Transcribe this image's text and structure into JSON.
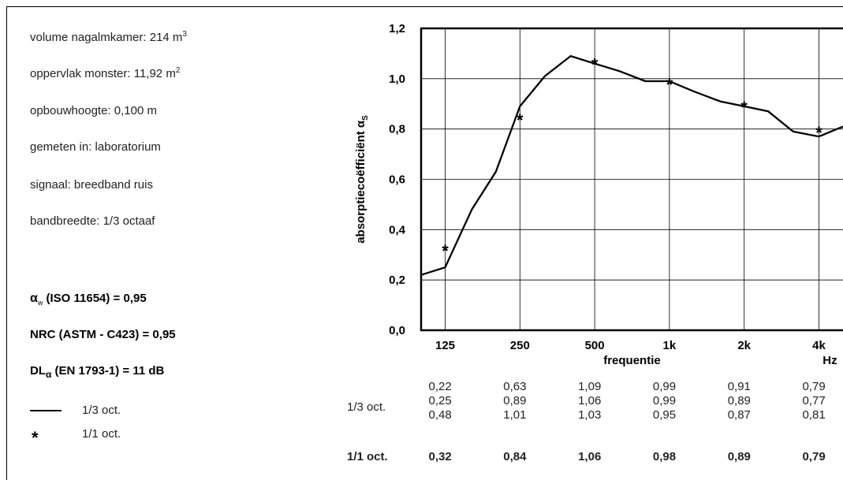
{
  "info": {
    "volume_label": "volume nagalmkamer: 214 m",
    "volume_sup": "3",
    "area_label": "oppervlak monster: 11,92 m",
    "area_sup": "2",
    "height": "opbouwhoogte: 0,100 m",
    "measured": "gemeten in: laboratorium",
    "signal": "signaal: breedband ruis",
    "bandwidth": "bandbreedte: 1/3 octaaf"
  },
  "stats": {
    "alpha_w_symbol": "α",
    "alpha_w_sub": "w",
    "alpha_w_rest": " (ISO 11654) = 0,95",
    "nrc": "NRC (ASTM - C423) = 0,95",
    "dl_prefix": "DL",
    "dl_sub": "α",
    "dl_rest": " (EN 1793-1) =  11 dB"
  },
  "legend": {
    "line_label": "1/3 oct.",
    "star_label": "1/1 oct.",
    "star_symbol": "*"
  },
  "table": {
    "third_oct_label": "1/3 oct.",
    "one_oct_label": "1/1 oct.",
    "columns": [
      {
        "third": [
          "0,22",
          "0,25",
          "0,48"
        ],
        "one": "0,32"
      },
      {
        "third": [
          "0,63",
          "0,89",
          "1,01"
        ],
        "one": "0,84"
      },
      {
        "third": [
          "1,09",
          "1,06",
          "1,03"
        ],
        "one": "1,06"
      },
      {
        "third": [
          "0,99",
          "0,99",
          "0,95"
        ],
        "one": "0,98"
      },
      {
        "third": [
          "0,91",
          "0,89",
          "0,87"
        ],
        "one": "0,89"
      },
      {
        "third": [
          "0,79",
          "0,77",
          "0,81"
        ],
        "one": "0,79"
      }
    ]
  },
  "chart_data": {
    "type": "line",
    "xlabel": "frequentie",
    "x_unit": "Hz",
    "ylabel": "absorptiecoëfficiënt α",
    "ylabel_sub": "S",
    "ylim": [
      0,
      1.2
    ],
    "yticks": [
      "0,0",
      "0,2",
      "0,4",
      "0,6",
      "0,8",
      "1,0",
      "1,2"
    ],
    "ytick_values": [
      0,
      0.2,
      0.4,
      0.6,
      0.8,
      1.0,
      1.2
    ],
    "xticks": [
      "125",
      "250",
      "500",
      "1k",
      "2k",
      "4k"
    ],
    "xtick_hz": [
      125,
      250,
      500,
      1000,
      2000,
      4000
    ],
    "x_range_hz": [
      100,
      5000
    ],
    "grid": true,
    "series": [
      {
        "name": "1/3 oct.",
        "style": "line",
        "x": [
          100,
          125,
          160,
          200,
          250,
          315,
          400,
          500,
          630,
          800,
          1000,
          1250,
          1600,
          2000,
          2500,
          3150,
          4000,
          5000
        ],
        "values": [
          0.22,
          0.25,
          0.48,
          0.63,
          0.89,
          1.01,
          1.09,
          1.06,
          1.03,
          0.99,
          0.99,
          0.95,
          0.91,
          0.89,
          0.87,
          0.79,
          0.77,
          0.81
        ]
      },
      {
        "name": "1/1 oct.",
        "style": "star",
        "x": [
          125,
          250,
          500,
          1000,
          2000,
          4000
        ],
        "values": [
          0.32,
          0.84,
          1.06,
          0.98,
          0.89,
          0.79
        ]
      }
    ]
  }
}
